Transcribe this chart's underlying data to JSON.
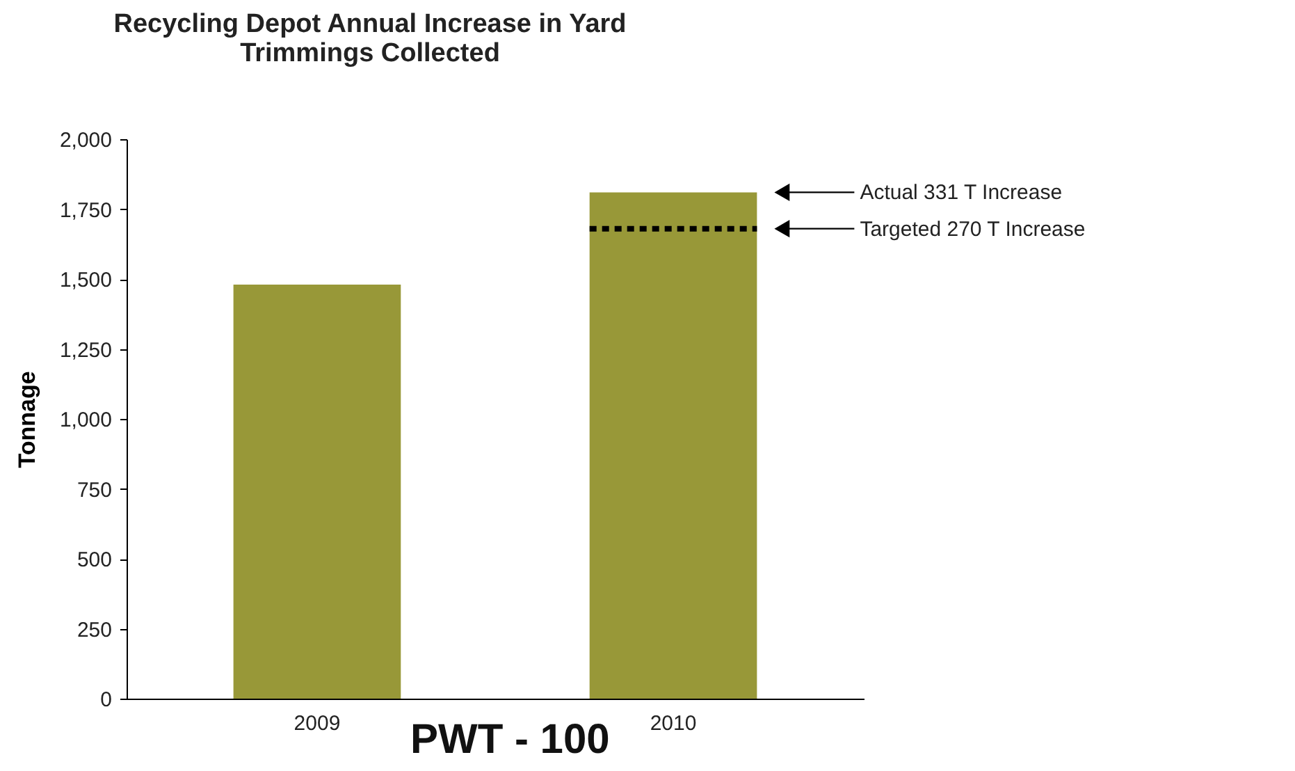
{
  "chart_data": {
    "type": "bar",
    "title": "Recycling Depot Annual Increase in Yard Trimmings Collected",
    "ylabel": "Tonnage",
    "categories": [
      "2009",
      "2010"
    ],
    "values": [
      1480,
      1810
    ],
    "color": "#989838",
    "ylim": [
      0,
      2000
    ],
    "yticks": [
      0,
      250,
      500,
      750,
      {
        "value": 1000,
        "label": "1,000"
      },
      {
        "value": 1250,
        "label": "1,250"
      },
      {
        "value": 1500,
        "label": "1,500"
      },
      {
        "value": 1750,
        "label": "1,750"
      },
      {
        "value": 2000,
        "label": "2,000"
      }
    ],
    "ref_lines": [
      {
        "axis": "y",
        "value": 1680,
        "label": "Targeted 270 T Increase",
        "color": "#000000",
        "line_style": "dotted"
      }
    ],
    "annotations": [
      "Actual 331 T Increase",
      "PWT - 100"
    ],
    "grid": false
  }
}
